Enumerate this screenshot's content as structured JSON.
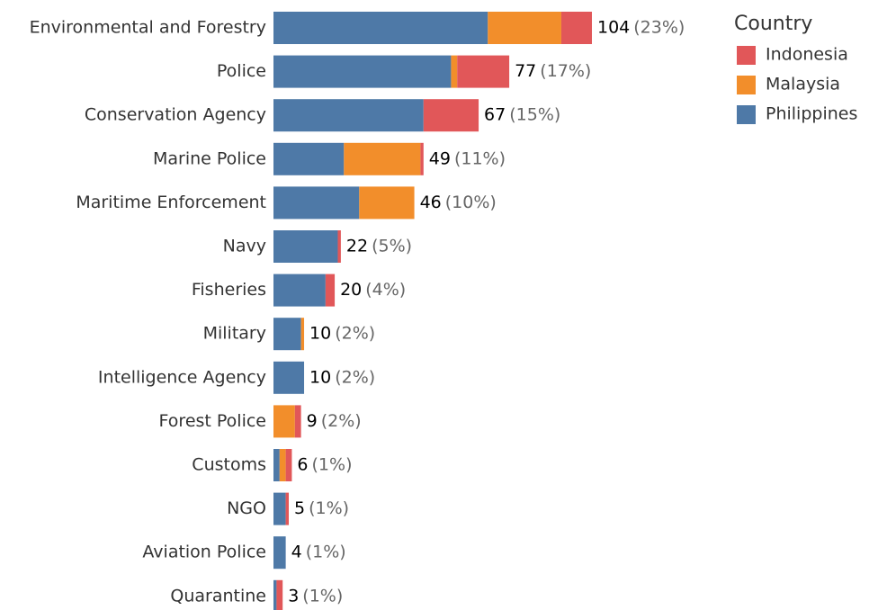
{
  "chart_data": {
    "type": "stacked_barh",
    "legend_title": "Country",
    "categories": [
      "Environmental and Forestry",
      "Police",
      "Conservation Agency",
      "Marine Police",
      "Maritime Enforcement",
      "Navy",
      "Fisheries",
      "Military",
      "Intelligence Agency",
      "Forest Police",
      "Customs",
      "NGO",
      "Aviation Police",
      "Quarantine"
    ],
    "series": [
      {
        "name": "Indonesia",
        "color": "#e15759",
        "values": [
          10,
          17,
          18,
          1,
          0,
          1,
          3,
          0,
          0,
          2,
          2,
          1,
          0,
          2
        ]
      },
      {
        "name": "Malaysia",
        "color": "#f28e2b",
        "values": [
          24,
          2,
          0,
          25,
          18,
          0,
          0,
          1,
          0,
          7,
          2,
          0,
          0,
          0
        ]
      },
      {
        "name": "Philippines",
        "color": "#4e79a7",
        "values": [
          70,
          58,
          49,
          23,
          28,
          21,
          17,
          9,
          10,
          0,
          2,
          4,
          4,
          1
        ]
      }
    ],
    "totals": [
      104,
      77,
      67,
      49,
      46,
      22,
      20,
      10,
      10,
      9,
      6,
      5,
      4,
      3
    ],
    "percent_labels": [
      "(23%)",
      "(17%)",
      "(15%)",
      "(11%)",
      "(10%)",
      "(5%)",
      "(4%)",
      "(2%)",
      "(2%)",
      "(2%)",
      "(1%)",
      "(1%)",
      "(1%)",
      "(1%)"
    ]
  }
}
